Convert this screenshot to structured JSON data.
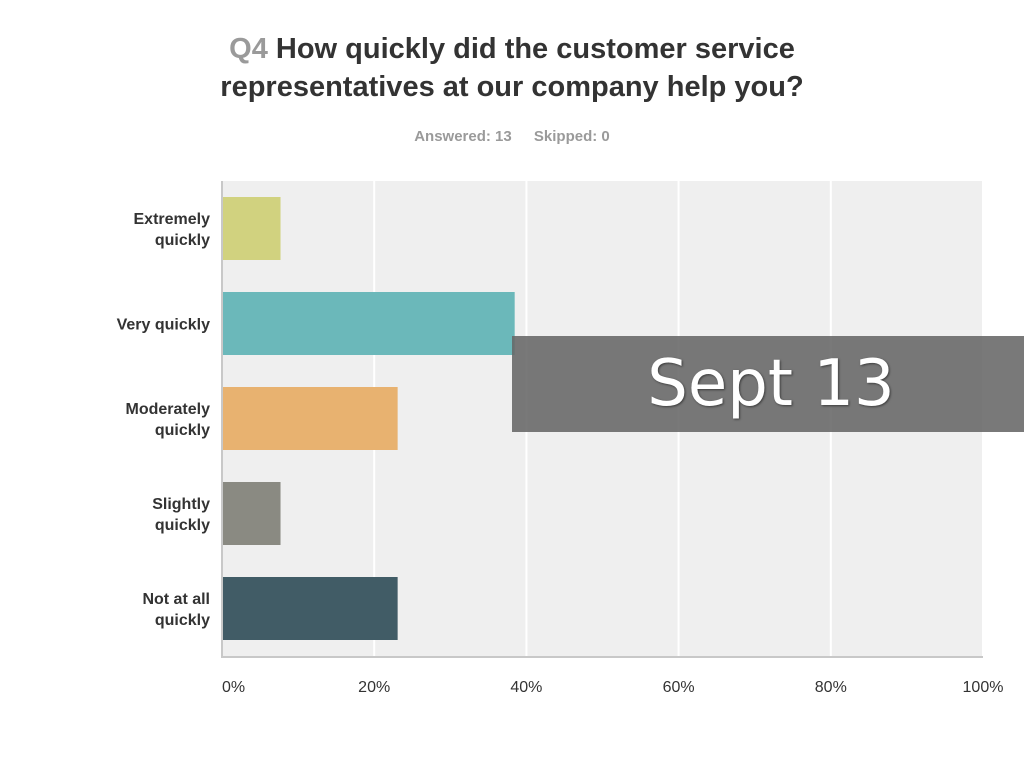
{
  "title": {
    "qnum": "Q4",
    "text": "How quickly did the customer service representatives at our company help you?"
  },
  "meta": {
    "answered": "Answered: 13",
    "skipped": "Skipped: 0"
  },
  "banner": {
    "text": "Sept 13"
  },
  "colors": {
    "plot_bg": "#efefef",
    "grid": "#ffffff",
    "axis": "#c8c8c8",
    "label": "#333333",
    "banner_bg": "#666666"
  },
  "chart_data": {
    "type": "bar",
    "orientation": "horizontal",
    "title": "Q4 How quickly did the customer service representatives at our company help you?",
    "categories": [
      [
        "Extremely",
        "quickly"
      ],
      [
        "Very quickly"
      ],
      [
        "Moderately",
        "quickly"
      ],
      [
        "Slightly",
        "quickly"
      ],
      [
        "Not at all",
        "quickly"
      ]
    ],
    "values": [
      7.69,
      38.46,
      23.08,
      7.69,
      23.08
    ],
    "bar_colors": [
      "#d1d27f",
      "#6bb8ba",
      "#e8b270",
      "#8a8a82",
      "#415c66"
    ],
    "xlim": [
      0,
      100
    ],
    "xticks": [
      "0%",
      "20%",
      "40%",
      "60%",
      "80%",
      "100%"
    ],
    "xtick_values": [
      0,
      20,
      40,
      60,
      80,
      100
    ],
    "grid": true,
    "xlabel": "",
    "ylabel": ""
  }
}
